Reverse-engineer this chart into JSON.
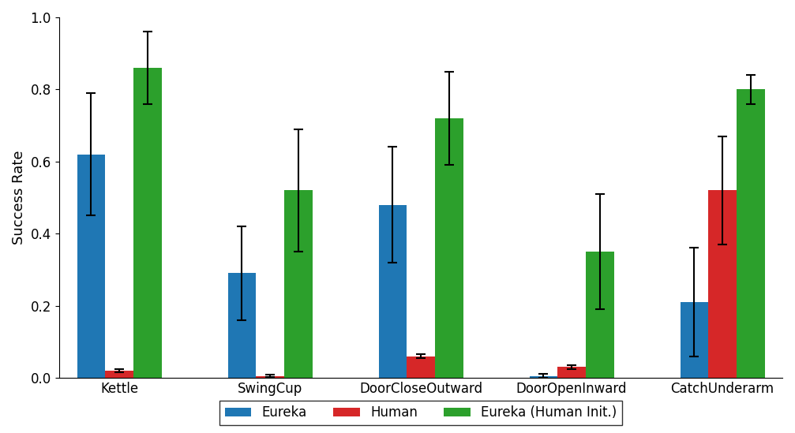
{
  "categories": [
    "Kettle",
    "SwingCup",
    "DoorCloseOutward",
    "DoorOpenInward",
    "CatchUnderarm"
  ],
  "series": {
    "Eureka": {
      "values": [
        0.62,
        0.29,
        0.48,
        0.005,
        0.21
      ],
      "errors": [
        0.17,
        0.13,
        0.16,
        0.005,
        0.15
      ],
      "color": "#1f77b4"
    },
    "Human": {
      "values": [
        0.02,
        0.005,
        0.06,
        0.03,
        0.52
      ],
      "errors": [
        0.005,
        0.003,
        0.005,
        0.005,
        0.15
      ],
      "color": "#d62728"
    },
    "Eureka (Human Init.)": {
      "values": [
        0.86,
        0.52,
        0.72,
        0.35,
        0.8
      ],
      "errors": [
        0.1,
        0.17,
        0.13,
        0.16,
        0.04
      ],
      "color": "#2ca02c"
    }
  },
  "ylabel": "Success Rate",
  "ylim": [
    0,
    1.0
  ],
  "yticks": [
    0.0,
    0.2,
    0.4,
    0.6,
    0.8,
    1.0
  ],
  "bar_width": 0.28,
  "capsize": 4,
  "elinewidth": 1.5,
  "figsize": [
    10.07,
    5.49
  ],
  "dpi": 100,
  "tick_fontsize": 12,
  "ylabel_fontsize": 13,
  "legend_fontsize": 12
}
